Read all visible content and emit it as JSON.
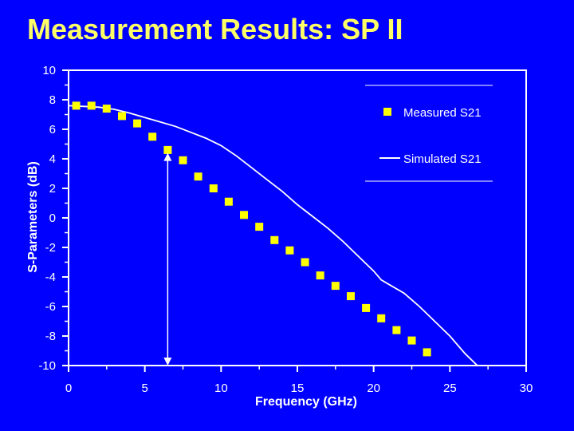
{
  "slide": {
    "title": "Measurement Results: SP II"
  },
  "colors": {
    "background": "#0000ff",
    "title": "#ffff66",
    "axis": "#ffffff",
    "measured_marker": "#ffff00",
    "simulated_line": "#ffffff"
  },
  "chart_data": {
    "type": "scatter",
    "xlabel": "Frequency (GHz)",
    "ylabel": "S-Parameters (dB)",
    "xlim": [
      0,
      30
    ],
    "ylim": [
      -10,
      10
    ],
    "xticks": [
      0,
      5,
      10,
      15,
      20,
      25,
      30
    ],
    "yticks": [
      10,
      8,
      6,
      4,
      2,
      0,
      -2,
      -4,
      -6,
      -8,
      -10
    ],
    "grid": false,
    "legend_position": "top-right",
    "series": [
      {
        "name": "Measured S21",
        "kind": "markers",
        "x": [
          0.5,
          1.5,
          2.5,
          3.5,
          4.5,
          5.5,
          6.5,
          7.5,
          8.5,
          9.5,
          10.5,
          11.5,
          12.5,
          13.5,
          14.5,
          15.5,
          16.5,
          17.5,
          18.5,
          19.5,
          20.5,
          21.5,
          22.5,
          23.5
        ],
        "y": [
          7.6,
          7.6,
          7.4,
          6.9,
          6.4,
          5.5,
          4.6,
          3.9,
          2.8,
          2.0,
          1.1,
          0.2,
          -0.6,
          -1.5,
          -2.2,
          -3.0,
          -3.9,
          -4.6,
          -5.3,
          -6.1,
          -6.8,
          -7.6,
          -8.3,
          -9.1
        ]
      },
      {
        "name": "Simulated S21",
        "kind": "line",
        "x": [
          0,
          1,
          2,
          3,
          4,
          5,
          6,
          7,
          8,
          9,
          10,
          11,
          12,
          13,
          14,
          15,
          16,
          17,
          18,
          19,
          20,
          20.5,
          21,
          22,
          23,
          24,
          25,
          26,
          26.8
        ],
        "y": [
          7.6,
          7.55,
          7.5,
          7.35,
          7.1,
          6.8,
          6.5,
          6.2,
          5.8,
          5.4,
          4.9,
          4.2,
          3.4,
          2.6,
          1.8,
          0.9,
          0.1,
          -0.7,
          -1.6,
          -2.6,
          -3.6,
          -4.2,
          -4.5,
          -5.1,
          -6.0,
          -7.0,
          -8.0,
          -9.2,
          -10.0
        ]
      }
    ],
    "annotation": {
      "kind": "double-arrow",
      "x": 6.5,
      "y_from": 4.4,
      "y_to": -10
    }
  }
}
